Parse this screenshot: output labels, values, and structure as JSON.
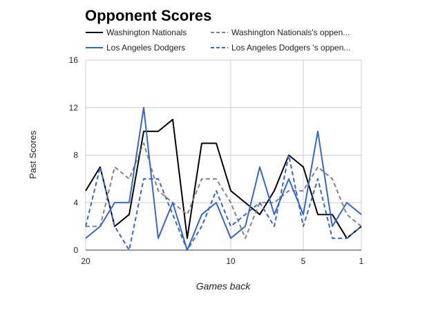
{
  "chart_data": {
    "type": "line",
    "title": "Opponent Scores",
    "xlabel": "Games back",
    "ylabel": "Past Scores",
    "x": [
      20,
      19,
      18,
      17,
      16,
      15,
      14,
      13,
      12,
      11,
      10,
      9,
      8,
      7,
      6,
      5,
      4,
      3,
      2,
      1
    ],
    "xlim": [
      20,
      1
    ],
    "xticks": [
      {
        "value": 20,
        "label": "20"
      },
      {
        "value": 10,
        "label": "10"
      },
      {
        "value": 5,
        "label": "5"
      },
      {
        "value": 1,
        "label": "1"
      }
    ],
    "ylim": [
      0,
      16
    ],
    "yticks": [
      {
        "value": 0,
        "label": "0"
      },
      {
        "value": 4,
        "label": "4"
      },
      {
        "value": 8,
        "label": "8"
      },
      {
        "value": 12,
        "label": "12"
      },
      {
        "value": 16,
        "label": "16"
      }
    ],
    "grid": true,
    "legend_position": "top",
    "series": [
      {
        "name": "Washington Nationals",
        "color": "#000000",
        "dash": "solid",
        "values": [
          5,
          7,
          2,
          3,
          10,
          10,
          11,
          1,
          9,
          9,
          5,
          4,
          3,
          5,
          8,
          7,
          3,
          3,
          1,
          2
        ]
      },
      {
        "name": "Washington Nationals's oppen...",
        "color": "#808080",
        "dash": "dashed",
        "values": [
          2,
          2,
          7,
          6,
          9,
          5,
          4,
          3,
          6,
          6,
          4,
          1,
          4,
          4,
          5,
          5,
          7,
          6,
          3,
          2
        ]
      },
      {
        "name": "Los Angeles Dodgers",
        "color": "#3366cc",
        "dash": "solid",
        "values": [
          1,
          2,
          4,
          4,
          12,
          1,
          4,
          0,
          3,
          4,
          1,
          2,
          7,
          3,
          6,
          3,
          10,
          2,
          4,
          3
        ]
      },
      {
        "name": "Los Angeles Dodgers 's oppen...",
        "color": "#3366cc",
        "dash": "dashed",
        "values": [
          2,
          7,
          2,
          0,
          6,
          6,
          3,
          0,
          2,
          5,
          2,
          3,
          4,
          2,
          8,
          2,
          6,
          1,
          1,
          2
        ]
      }
    ]
  }
}
